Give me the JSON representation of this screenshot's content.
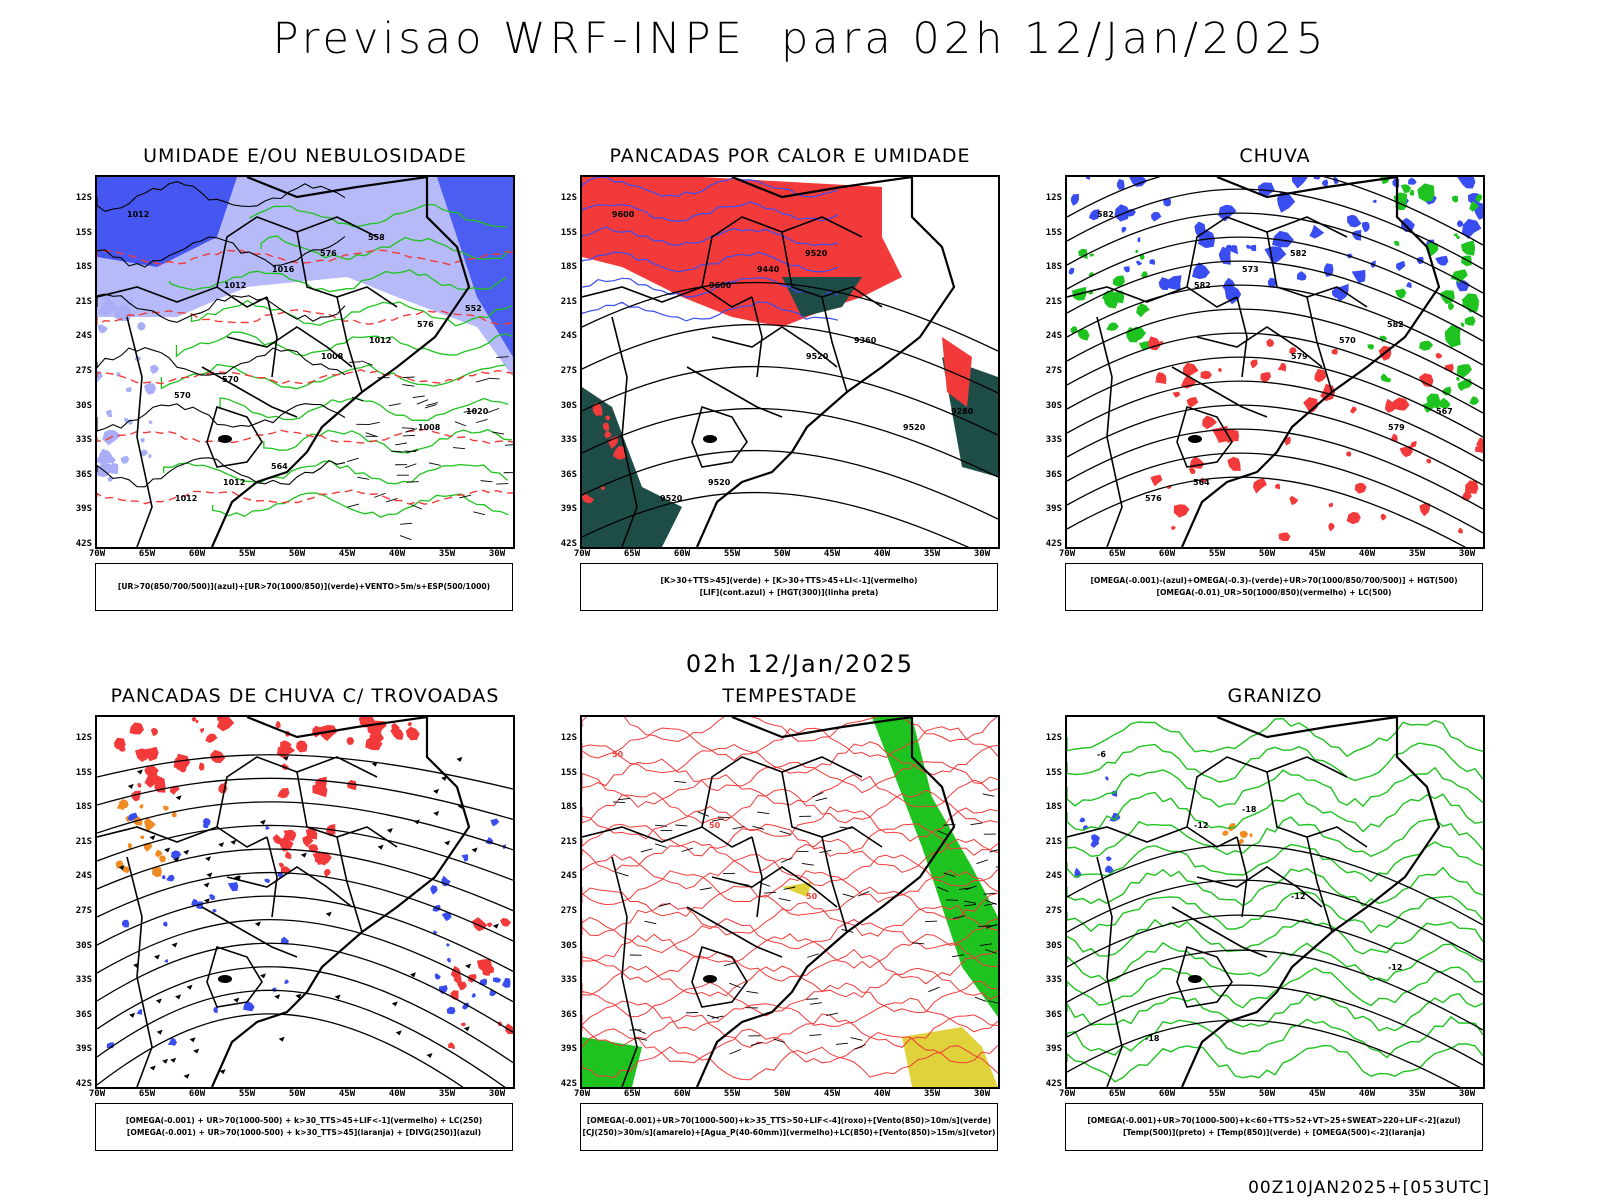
{
  "title": "Previsao WRF-INPE  para 02h 12/Jan/2025",
  "subtitle": "02h 12/Jan/2025",
  "footer": "00Z10JAN2025+[053UTC]",
  "lat_labels": [
    "12S",
    "15S",
    "18S",
    "21S",
    "24S",
    "27S",
    "30S",
    "33S",
    "36S",
    "39S",
    "42S"
  ],
  "lon_labels": [
    "70W",
    "65W",
    "60W",
    "55W",
    "50W",
    "45W",
    "40W",
    "35W",
    "30W"
  ],
  "colors": {
    "blue": "#3a4df0",
    "lightblue": "#a9aef7",
    "green": "#1fc31f",
    "red": "#f23a3a",
    "darkgreen": "#1e4d47",
    "orange": "#f08a22",
    "yellow": "#e0d23a"
  },
  "panels": [
    {
      "id": "umidade",
      "title": "UMIDADE E/OU NEBULOSIDADE",
      "legend": [
        "[UR>70(850/700/500)](azul)+[UR>70(1000/850)](verde)+VENTO>5m/s+ESP(500/1000)"
      ],
      "contour_labels": [
        "1012",
        "1012",
        "1008",
        "1008",
        "1012",
        "1016",
        "1012",
        "1020",
        "1012",
        "576",
        "576",
        "570",
        "564",
        "558",
        "552",
        "570"
      ]
    },
    {
      "id": "pancadas-calor",
      "title": "PANCADAS POR CALOR E UMIDADE",
      "legend": [
        "[K>30+TTS>45](verde) + [K>30+TTS>45+LI<-1](vermelho)",
        "[LIF](cont.azul) + [HGT(300)](linha preta)"
      ],
      "contour_labels": [
        "9600",
        "9600",
        "9520",
        "9520",
        "9520",
        "9440",
        "9360",
        "9280",
        "9520",
        "9520"
      ]
    },
    {
      "id": "chuva",
      "title": "CHUVA",
      "legend": [
        "[OMEGA(-0.001)-(azul)+OMEGA(-0.3)-(verde)+UR>70(1000/850/700/500)] + HGT(500)",
        "[OMEGA(-0.01)_UR>50(1000/850)(vermelho) + LC(500)"
      ],
      "contour_labels": [
        "582",
        "582",
        "579",
        "579",
        "576",
        "573",
        "570",
        "567",
        "564",
        "582",
        "582"
      ]
    },
    {
      "id": "pancadas-trovoadas",
      "title": "PANCADAS DE CHUVA C/ TROVOADAS",
      "legend": [
        "[OMEGA(-0.001) + UR>70(1000-500) + k>30_TTS>45+LIF<-1](vermelho) + LC(250)",
        "[OMEGA(-0.001) + UR>70(1000-500) + k>30_TTS>45](laranja) + [DIVG(250)](azul)"
      ],
      "contour_labels": []
    },
    {
      "id": "tempestade",
      "title": "TEMPESTADE",
      "legend": [
        "[OMEGA(-0.001)+UR>70(1000-500)+k>35_TTS>50+LIF<-4](roxo)+[Vento(850)>10m/s](verde)",
        "[CJ(250)>30m/s](amarelo)+[Agua_P(40-60mm)](vermelho)+LC(850)+[Vento(850)>15m/s](vetor)"
      ],
      "contour_labels": [
        "50",
        "50",
        "50"
      ]
    },
    {
      "id": "granizo",
      "title": "GRANIZO",
      "legend": [
        "[OMEGA(-0.001)+UR>70(1000-500)+k<60+TTS>52+VT>25+SWEAT>220+LIF<-2](azul)",
        "[Temp(500)](preto) + [Temp(850)](verde) + [OMEGA(500)<-2](laranja)"
      ],
      "contour_labels": [
        "-6",
        "-12",
        "-12",
        "-12",
        "-18",
        "-18"
      ]
    }
  ]
}
